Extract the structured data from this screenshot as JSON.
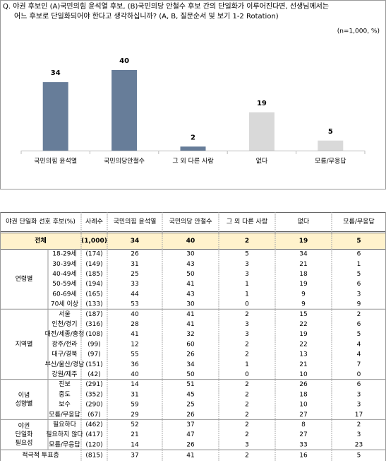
{
  "chart_data": {
    "type": "bar",
    "title": "Q. 야권 후보인 (A)국민의힘 윤석열 후보, (B)국민의당 안철수 후보 간의 단일화가 이루어진다면, 선생님께서는",
    "subtitle": "어느 후보로 단일화되어야 한다고 생각하십니까? (A, B, 질문순서 및 보기 1-2 Rotation)",
    "note": "(n=1,000, %)",
    "categories": [
      "국민의힘 윤석열",
      "국민의당안철수",
      "그 외 다른 사람",
      "없다",
      "모름/무응답"
    ],
    "values": [
      34,
      40,
      2,
      19,
      5
    ],
    "colors": [
      "#677d99",
      "#677d99",
      "#677d99",
      "#d9d9d9",
      "#d9d9d9"
    ]
  },
  "table": {
    "header": [
      "야권 단일화 선호 후보(%)",
      "사례수",
      "국민의힘 윤석열",
      "국민의당 안철수",
      "그 외 다른 사람",
      "없다",
      "모름/무응답"
    ],
    "total": {
      "label": "전체",
      "n": "(1,000)",
      "values": [
        34,
        40,
        2,
        19,
        5
      ]
    },
    "groups": [
      {
        "label_lines": [
          "연령별"
        ],
        "rows": [
          {
            "label": "18-29세",
            "n": "(174)",
            "values": [
              26,
              30,
              5,
              34,
              6
            ]
          },
          {
            "label": "30-39세",
            "n": "(149)",
            "values": [
              31,
              43,
              3,
              21,
              1
            ]
          },
          {
            "label": "40-49세",
            "n": "(185)",
            "values": [
              25,
              50,
              3,
              18,
              5
            ]
          },
          {
            "label": "50-59세",
            "n": "(194)",
            "values": [
              33,
              41,
              1,
              19,
              6
            ]
          },
          {
            "label": "60-69세",
            "n": "(165)",
            "values": [
              44,
              43,
              1,
              9,
              3
            ]
          },
          {
            "label": "70세 이상",
            "n": "(133)",
            "values": [
              53,
              30,
              0,
              9,
              9
            ]
          }
        ]
      },
      {
        "label_lines": [
          "지역별"
        ],
        "rows": [
          {
            "label": "서울",
            "n": "(187)",
            "values": [
              40,
              41,
              2,
              15,
              2
            ]
          },
          {
            "label": "인천/경기",
            "n": "(316)",
            "values": [
              28,
              41,
              3,
              22,
              6
            ]
          },
          {
            "label": "대전/세종/충청",
            "n": "(108)",
            "values": [
              41,
              32,
              3,
              19,
              5
            ]
          },
          {
            "label": "광주/전라",
            "n": "(99)",
            "values": [
              12,
              60,
              2,
              22,
              4
            ]
          },
          {
            "label": "대구/경북",
            "n": "(97)",
            "values": [
              55,
              26,
              2,
              13,
              4
            ]
          },
          {
            "label": "부산/울산/경남",
            "n": "(151)",
            "values": [
              36,
              34,
              1,
              21,
              7
            ]
          },
          {
            "label": "강원/제주",
            "n": "(42)",
            "values": [
              40,
              50,
              0,
              10,
              0
            ]
          }
        ]
      },
      {
        "label_lines": [
          "이념",
          "성향별"
        ],
        "rows": [
          {
            "label": "진보",
            "n": "(291)",
            "values": [
              14,
              51,
              2,
              26,
              6
            ]
          },
          {
            "label": "중도",
            "n": "(352)",
            "values": [
              31,
              45,
              2,
              18,
              3
            ]
          },
          {
            "label": "보수",
            "n": "(290)",
            "values": [
              59,
              25,
              2,
              10,
              3
            ]
          },
          {
            "label": "모름/무응답",
            "n": "(67)",
            "values": [
              29,
              26,
              2,
              27,
              17
            ]
          }
        ]
      },
      {
        "label_lines": [
          "야권",
          "단일화",
          "필요성"
        ],
        "rows": [
          {
            "label": "필요하다",
            "n": "(462)",
            "values": [
              52,
              37,
              2,
              8,
              2
            ]
          },
          {
            "label": "필요하지 않다",
            "n": "(417)",
            "values": [
              21,
              47,
              2,
              27,
              3
            ]
          },
          {
            "label": "모름/무응답",
            "n": "(120)",
            "values": [
              14,
              26,
              3,
              33,
              23
            ]
          }
        ]
      }
    ],
    "extra_row": {
      "label": "적극적 투표층",
      "n": "(815)",
      "values": [
        37,
        41,
        2,
        16,
        5
      ]
    }
  }
}
